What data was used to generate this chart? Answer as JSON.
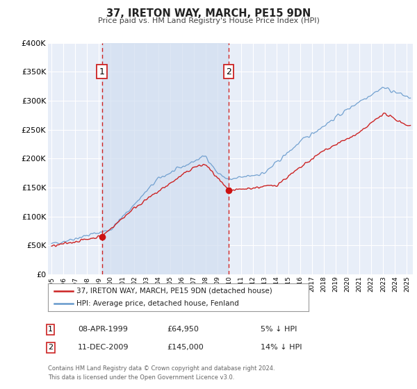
{
  "title": "37, IRETON WAY, MARCH, PE15 9DN",
  "subtitle": "Price paid vs. HM Land Registry's House Price Index (HPI)",
  "ylim": [
    0,
    400000
  ],
  "yticks": [
    0,
    50000,
    100000,
    150000,
    200000,
    250000,
    300000,
    350000,
    400000
  ],
  "ytick_labels": [
    "£0",
    "£50K",
    "£100K",
    "£150K",
    "£200K",
    "£250K",
    "£300K",
    "£350K",
    "£400K"
  ],
  "xlim_start": 1994.7,
  "xlim_end": 2025.5,
  "background_color": "#ffffff",
  "plot_bg_color": "#e8eef8",
  "grid_color": "#ffffff",
  "sale1_date": 1999.27,
  "sale1_price": 64950,
  "sale1_label": "1",
  "sale2_date": 2009.95,
  "sale2_price": 145000,
  "sale2_label": "2",
  "vline_color": "#cc2222",
  "marker_color": "#cc1111",
  "line1_color": "#cc2222",
  "line2_color": "#6699cc",
  "span_color": "#d0ddf0",
  "legend_line1": "37, IRETON WAY, MARCH, PE15 9DN (detached house)",
  "legend_line2": "HPI: Average price, detached house, Fenland",
  "annotation1_date": "08-APR-1999",
  "annotation1_price": "£64,950",
  "annotation1_pct": "5% ↓ HPI",
  "annotation2_date": "11-DEC-2009",
  "annotation2_price": "£145,000",
  "annotation2_pct": "14% ↓ HPI",
  "footer1": "Contains HM Land Registry data © Crown copyright and database right 2024.",
  "footer2": "This data is licensed under the Open Government Licence v3.0."
}
